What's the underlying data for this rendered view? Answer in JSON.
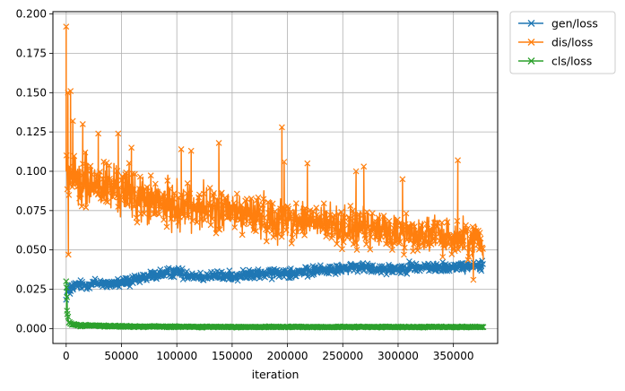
{
  "chart_data": {
    "type": "line",
    "xlabel": "iteration",
    "ylabel": "",
    "xlim": [
      -12000,
      390000
    ],
    "ylim": [
      -0.0095,
      0.2015
    ],
    "x_ticks": [
      0,
      50000,
      100000,
      150000,
      200000,
      250000,
      300000,
      350000
    ],
    "x_tick_labels": [
      "0",
      "50000",
      "100000",
      "150000",
      "200000",
      "250000",
      "300000",
      "350000"
    ],
    "y_ticks": [
      0.0,
      0.025,
      0.05,
      0.075,
      0.1,
      0.125,
      0.15,
      0.175,
      0.2
    ],
    "y_tick_labels": [
      "0.000",
      "0.025",
      "0.050",
      "0.075",
      "0.100",
      "0.125",
      "0.150",
      "0.175",
      "0.200"
    ],
    "grid": true,
    "legend_position": "outside-top-right",
    "marker": "x",
    "series": [
      {
        "name": "gen/loss",
        "color": "#1f77b4",
        "x": [
          0,
          2000,
          5000,
          10000,
          20000,
          30000,
          40000,
          50000,
          60000,
          70000,
          80000,
          90000,
          100000,
          110000,
          120000,
          130000,
          140000,
          150000,
          160000,
          170000,
          180000,
          190000,
          200000,
          210000,
          220000,
          230000,
          240000,
          250000,
          260000,
          270000,
          280000,
          290000,
          300000,
          310000,
          320000,
          330000,
          340000,
          350000,
          360000,
          370000,
          377000
        ],
        "mean": [
          0.022,
          0.024,
          0.026,
          0.027,
          0.028,
          0.029,
          0.028,
          0.029,
          0.03,
          0.032,
          0.034,
          0.035,
          0.036,
          0.034,
          0.033,
          0.033,
          0.033,
          0.033,
          0.034,
          0.034,
          0.035,
          0.035,
          0.036,
          0.036,
          0.036,
          0.037,
          0.038,
          0.038,
          0.039,
          0.039,
          0.038,
          0.038,
          0.038,
          0.039,
          0.039,
          0.039,
          0.039,
          0.039,
          0.039,
          0.04,
          0.041
        ],
        "spread": [
          0.006,
          0.006,
          0.006,
          0.005,
          0.005,
          0.005,
          0.005,
          0.005,
          0.005,
          0.005,
          0.005,
          0.005,
          0.005,
          0.005,
          0.005,
          0.005,
          0.005,
          0.005,
          0.005,
          0.005,
          0.005,
          0.005,
          0.005,
          0.005,
          0.005,
          0.005,
          0.005,
          0.005,
          0.005,
          0.005,
          0.005,
          0.005,
          0.005,
          0.005,
          0.005,
          0.005,
          0.005,
          0.005,
          0.005,
          0.005,
          0.005
        ]
      },
      {
        "name": "dis/loss",
        "color": "#ff7f0e",
        "x": [
          0,
          2000,
          5000,
          10000,
          20000,
          30000,
          40000,
          50000,
          60000,
          70000,
          80000,
          90000,
          100000,
          110000,
          120000,
          130000,
          140000,
          150000,
          160000,
          170000,
          180000,
          190000,
          200000,
          210000,
          220000,
          230000,
          240000,
          250000,
          260000,
          270000,
          280000,
          290000,
          300000,
          310000,
          320000,
          330000,
          340000,
          350000,
          360000,
          370000,
          377000
        ],
        "mean": [
          0.1,
          0.098,
          0.095,
          0.093,
          0.092,
          0.091,
          0.09,
          0.088,
          0.085,
          0.082,
          0.08,
          0.079,
          0.078,
          0.078,
          0.077,
          0.076,
          0.075,
          0.074,
          0.073,
          0.072,
          0.071,
          0.07,
          0.07,
          0.069,
          0.068,
          0.067,
          0.066,
          0.065,
          0.064,
          0.063,
          0.063,
          0.062,
          0.061,
          0.061,
          0.06,
          0.06,
          0.059,
          0.058,
          0.058,
          0.057,
          0.056
        ],
        "spread": [
          0.03,
          0.03,
          0.028,
          0.027,
          0.026,
          0.025,
          0.025,
          0.024,
          0.024,
          0.023,
          0.023,
          0.022,
          0.022,
          0.022,
          0.022,
          0.021,
          0.021,
          0.021,
          0.02,
          0.02,
          0.02,
          0.02,
          0.02,
          0.019,
          0.019,
          0.019,
          0.019,
          0.019,
          0.018,
          0.018,
          0.018,
          0.018,
          0.018,
          0.018,
          0.017,
          0.017,
          0.017,
          0.017,
          0.017,
          0.016,
          0.016
        ],
        "spikes": [
          [
            0,
            0.192
          ],
          [
            1500,
            0.15
          ],
          [
            4000,
            0.151
          ],
          [
            6000,
            0.132
          ],
          [
            15000,
            0.13
          ],
          [
            29000,
            0.124
          ],
          [
            47000,
            0.124
          ],
          [
            59000,
            0.115
          ],
          [
            104000,
            0.114
          ],
          [
            113000,
            0.113
          ],
          [
            138000,
            0.118
          ],
          [
            195000,
            0.128
          ],
          [
            197000,
            0.106
          ],
          [
            218000,
            0.105
          ],
          [
            262000,
            0.1
          ],
          [
            269000,
            0.103
          ],
          [
            304000,
            0.095
          ],
          [
            354000,
            0.107
          ],
          [
            2000,
            0.047
          ],
          [
            368000,
            0.031
          ]
        ]
      },
      {
        "name": "cls/loss",
        "color": "#2ca02c",
        "x": [
          0,
          500,
          1000,
          2000,
          3000,
          5000,
          8000,
          12000,
          20000,
          40000,
          80000,
          150000,
          250000,
          377000
        ],
        "mean": [
          0.018,
          0.014,
          0.009,
          0.005,
          0.004,
          0.003,
          0.0025,
          0.002,
          0.002,
          0.0015,
          0.0012,
          0.001,
          0.001,
          0.001
        ],
        "spread": [
          0.01,
          0.008,
          0.005,
          0.003,
          0.002,
          0.0015,
          0.001,
          0.001,
          0.0008,
          0.0007,
          0.0006,
          0.0005,
          0.0005,
          0.0005
        ],
        "spikes": [
          [
            0,
            0.03
          ],
          [
            300,
            0.026
          ],
          [
            700,
            0.02
          ]
        ]
      }
    ]
  }
}
